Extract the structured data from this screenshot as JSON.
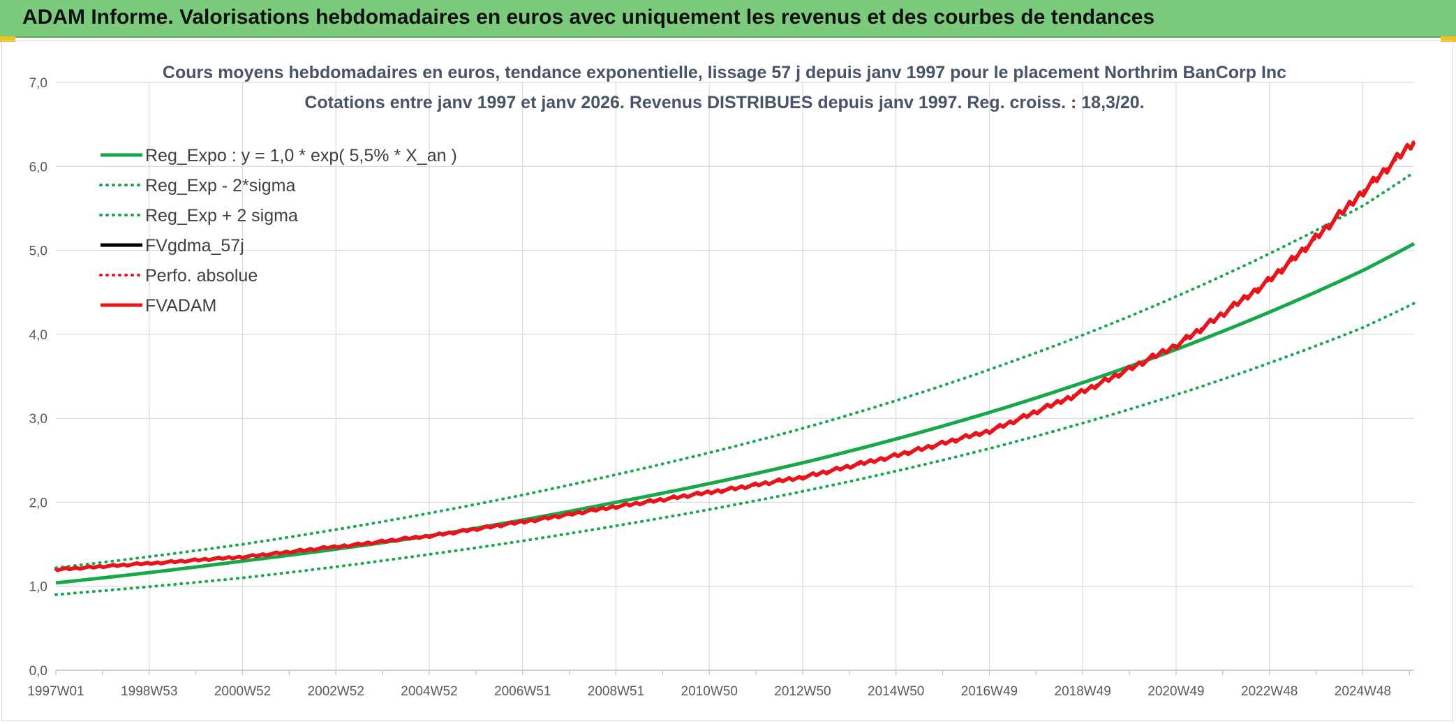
{
  "header": {
    "title": "ADAM Informe. Valorisations hebdomadaires en euros avec uniquement les revenus et des courbes de tendances"
  },
  "colors": {
    "header_bg": "#7ccb7c",
    "green": "#17a84a",
    "red": "#e8141c",
    "black": "#000000",
    "grid": "#d9d9d9",
    "title_text": "#4a5468"
  },
  "chart_data": {
    "type": "line",
    "title_line1": "Cours moyens hebdomadaires en euros, tendance exponentielle, lissage 57 j depuis janv 1997 pour le placement Northrim BanCorp Inc",
    "title_line2": "Cotations entre janv 1997 et janv 2026. Revenus DISTRIBUES depuis janv 1997. Reg. croiss. : 18,3/20.",
    "xlabel": "",
    "ylabel": "",
    "ylim": [
      0,
      7
    ],
    "xlim": [
      1997.0,
      2026.1
    ],
    "y_ticks": [
      "0,0",
      "1,0",
      "2,0",
      "3,0",
      "4,0",
      "5,0",
      "6,0",
      "7,0"
    ],
    "x_ticks": [
      {
        "label": "1997W01",
        "x": 1997.0
      },
      {
        "label": "1998W53",
        "x": 1999.0
      },
      {
        "label": "2000W52",
        "x": 2001.0
      },
      {
        "label": "2002W52",
        "x": 2003.0
      },
      {
        "label": "2004W52",
        "x": 2005.0
      },
      {
        "label": "2006W51",
        "x": 2007.0
      },
      {
        "label": "2008W51",
        "x": 2009.0
      },
      {
        "label": "2010W50",
        "x": 2011.0
      },
      {
        "label": "2012W50",
        "x": 2013.0
      },
      {
        "label": "2014W50",
        "x": 2015.0
      },
      {
        "label": "2016W49",
        "x": 2017.0
      },
      {
        "label": "2018W49",
        "x": 2019.0
      },
      {
        "label": "2020W49",
        "x": 2021.0
      },
      {
        "label": "2022W48",
        "x": 2023.0
      },
      {
        "label": "2024W48",
        "x": 2025.0
      }
    ],
    "grid": true,
    "legend_position": "top-left",
    "series": [
      {
        "name": "Reg_Expo : y = 1,0 * exp( 5,5% *  X_an )",
        "style": "solid",
        "color": "#17a84a",
        "x": [
          1997.0,
          2001.0,
          2005.0,
          2009.0,
          2013.0,
          2017.0,
          2021.0,
          2025.0,
          2026.1
        ],
        "values": [
          1.04,
          1.3,
          1.6,
          2.0,
          2.47,
          3.07,
          3.82,
          4.76,
          5.08
        ]
      },
      {
        "name": "Reg_Exp - 2*sigma",
        "style": "dotted",
        "color": "#17a84a",
        "x": [
          1997.0,
          2001.0,
          2005.0,
          2009.0,
          2013.0,
          2017.0,
          2021.0,
          2025.0,
          2026.1
        ],
        "values": [
          0.9,
          1.1,
          1.38,
          1.72,
          2.13,
          2.64,
          3.28,
          4.08,
          4.37
        ]
      },
      {
        "name": "Reg_Exp + 2 sigma",
        "style": "dotted",
        "color": "#17a84a",
        "x": [
          1997.0,
          2001.0,
          2005.0,
          2009.0,
          2013.0,
          2017.0,
          2021.0,
          2025.0,
          2026.1
        ],
        "values": [
          1.22,
          1.5,
          1.87,
          2.33,
          2.88,
          3.58,
          4.45,
          5.53,
          5.93
        ]
      },
      {
        "name": "FVgdma_57j",
        "style": "solid",
        "color": "#000000",
        "x": [
          1997.0,
          2001.0,
          2005.0,
          2009.0,
          2013.0,
          2017.0,
          2021.0,
          2023.0,
          2025.0,
          2026.1
        ],
        "values": [
          1.2,
          1.35,
          1.6,
          1.95,
          2.3,
          2.85,
          3.87,
          4.65,
          5.7,
          6.3
        ]
      },
      {
        "name": "Perfo. absolue",
        "style": "dotted",
        "color": "#e8141c",
        "x": [
          1997.0,
          2001.0,
          2005.0,
          2009.0,
          2013.0,
          2017.0,
          2021.0,
          2023.0,
          2025.0,
          2026.1
        ],
        "values": [
          1.2,
          1.35,
          1.6,
          1.95,
          2.3,
          2.85,
          3.87,
          4.65,
          5.7,
          6.3
        ]
      },
      {
        "name": "FVADAM",
        "style": "solid",
        "color": "#e8141c",
        "x": [
          1997.0,
          2001.0,
          2005.0,
          2009.0,
          2013.0,
          2017.0,
          2021.0,
          2023.0,
          2025.0,
          2026.1
        ],
        "values": [
          1.2,
          1.35,
          1.6,
          1.95,
          2.3,
          2.85,
          3.87,
          4.65,
          5.7,
          6.3
        ]
      }
    ]
  }
}
